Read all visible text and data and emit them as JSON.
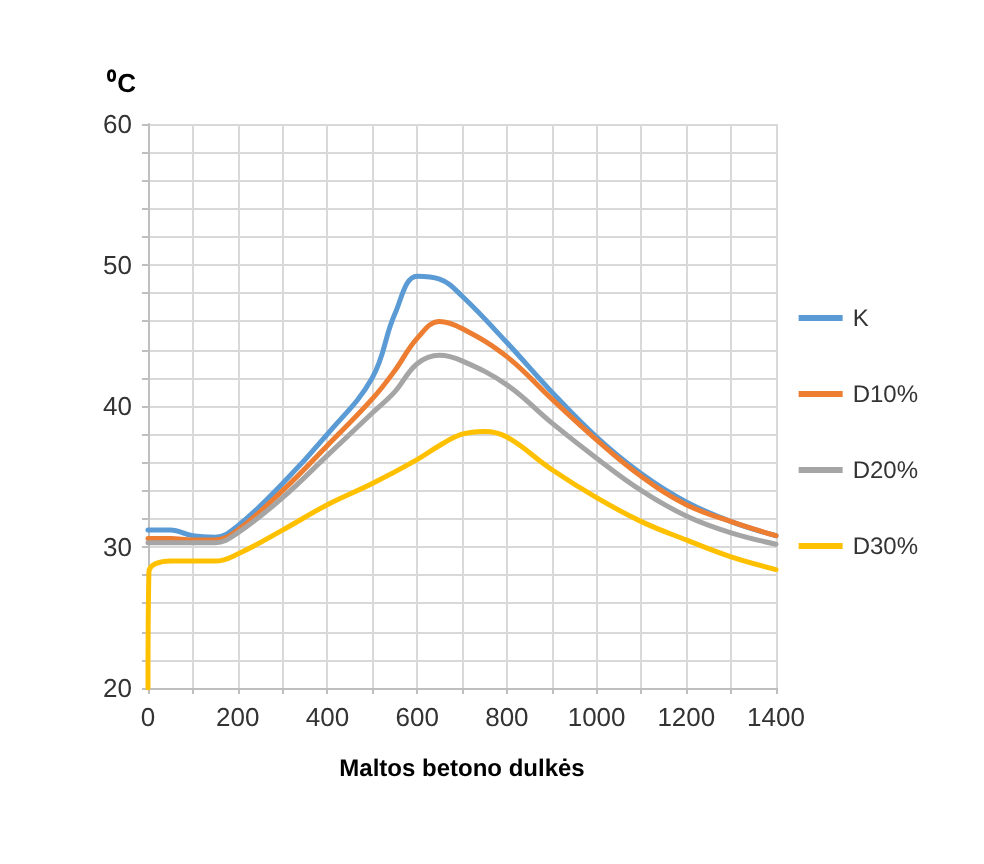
{
  "chart_data": {
    "type": "line",
    "xlabel": "Maltos betono dulkės",
    "ylabel": "⁰C",
    "xlim": [
      0,
      1400
    ],
    "xticks": [
      0,
      {
        "value": 100,
        "label": null
      },
      200,
      {
        "value": 300,
        "label": null
      },
      400,
      {
        "value": 500,
        "label": null
      },
      600,
      {
        "value": 700,
        "label": null
      },
      800,
      {
        "value": 900,
        "label": null
      },
      1000,
      {
        "value": 1100,
        "label": null
      },
      1200,
      {
        "value": 1300,
        "label": null
      },
      1400
    ],
    "ylim": [
      20,
      60
    ],
    "yticks": [
      20,
      {
        "value": 22,
        "label": null
      },
      {
        "value": 24,
        "label": null
      },
      {
        "value": 26,
        "label": null
      },
      {
        "value": 28,
        "label": null
      },
      30,
      {
        "value": 32,
        "label": null
      },
      {
        "value": 34,
        "label": null
      },
      {
        "value": 36,
        "label": null
      },
      {
        "value": 38,
        "label": null
      },
      40,
      {
        "value": 42,
        "label": null
      },
      {
        "value": 44,
        "label": null
      },
      {
        "value": 46,
        "label": null
      },
      {
        "value": 48,
        "label": null
      },
      50,
      {
        "value": 52,
        "label": null
      },
      {
        "value": 54,
        "label": null
      },
      {
        "value": 56,
        "label": null
      },
      {
        "value": 58,
        "label": null
      },
      60
    ],
    "grid": true,
    "legend": "right",
    "marker": "none",
    "line_style": "solid",
    "series": [
      {
        "name": "K",
        "color": "#5b9bd5",
        "x": [
          0,
          50,
          100,
          150,
          200,
          300,
          400,
          500,
          550,
          600,
          650,
          700,
          800,
          900,
          1000,
          1100,
          1200,
          1300,
          1400
        ],
        "values": [
          31.2,
          31.2,
          30.8,
          30.7,
          31.5,
          34.5,
          38,
          42,
          46.5,
          49.2,
          49,
          47.8,
          44.5,
          41,
          37.8,
          35.2,
          33.2,
          31.8,
          30.8
        ]
      },
      {
        "name": "D10%",
        "color": "#ed7d31",
        "x": [
          0,
          50,
          100,
          150,
          200,
          300,
          400,
          500,
          550,
          600,
          650,
          700,
          800,
          900,
          1000,
          1100,
          1200,
          1300,
          1400
        ],
        "values": [
          30.6,
          30.6,
          30.5,
          30.5,
          31.2,
          34,
          37.2,
          40.5,
          42.5,
          44.8,
          46,
          45.5,
          43.5,
          40.5,
          37.6,
          35,
          33,
          31.8,
          30.8
        ]
      },
      {
        "name": "D20%",
        "color": "#a5a5a5",
        "x": [
          0,
          50,
          100,
          150,
          200,
          300,
          400,
          500,
          550,
          600,
          650,
          700,
          800,
          900,
          1000,
          1100,
          1200,
          1300,
          1400
        ],
        "values": [
          30.3,
          30.3,
          30.3,
          30.3,
          31,
          33.5,
          36.5,
          39.5,
          41,
          43,
          43.6,
          43.2,
          41.5,
          38.8,
          36.3,
          34,
          32.2,
          31,
          30.2
        ]
      },
      {
        "name": "D30%",
        "color": "#ffc000",
        "x": [
          0,
          2,
          50,
          100,
          150,
          200,
          300,
          400,
          500,
          600,
          650,
          700,
          750,
          800,
          900,
          1000,
          1100,
          1200,
          1300,
          1400
        ],
        "values": [
          20,
          28.2,
          29,
          29,
          29,
          29.5,
          31.2,
          33,
          34.5,
          36.2,
          37.2,
          38,
          38.2,
          37.8,
          35.5,
          33.5,
          31.8,
          30.5,
          29.3,
          28.4
        ]
      }
    ]
  }
}
